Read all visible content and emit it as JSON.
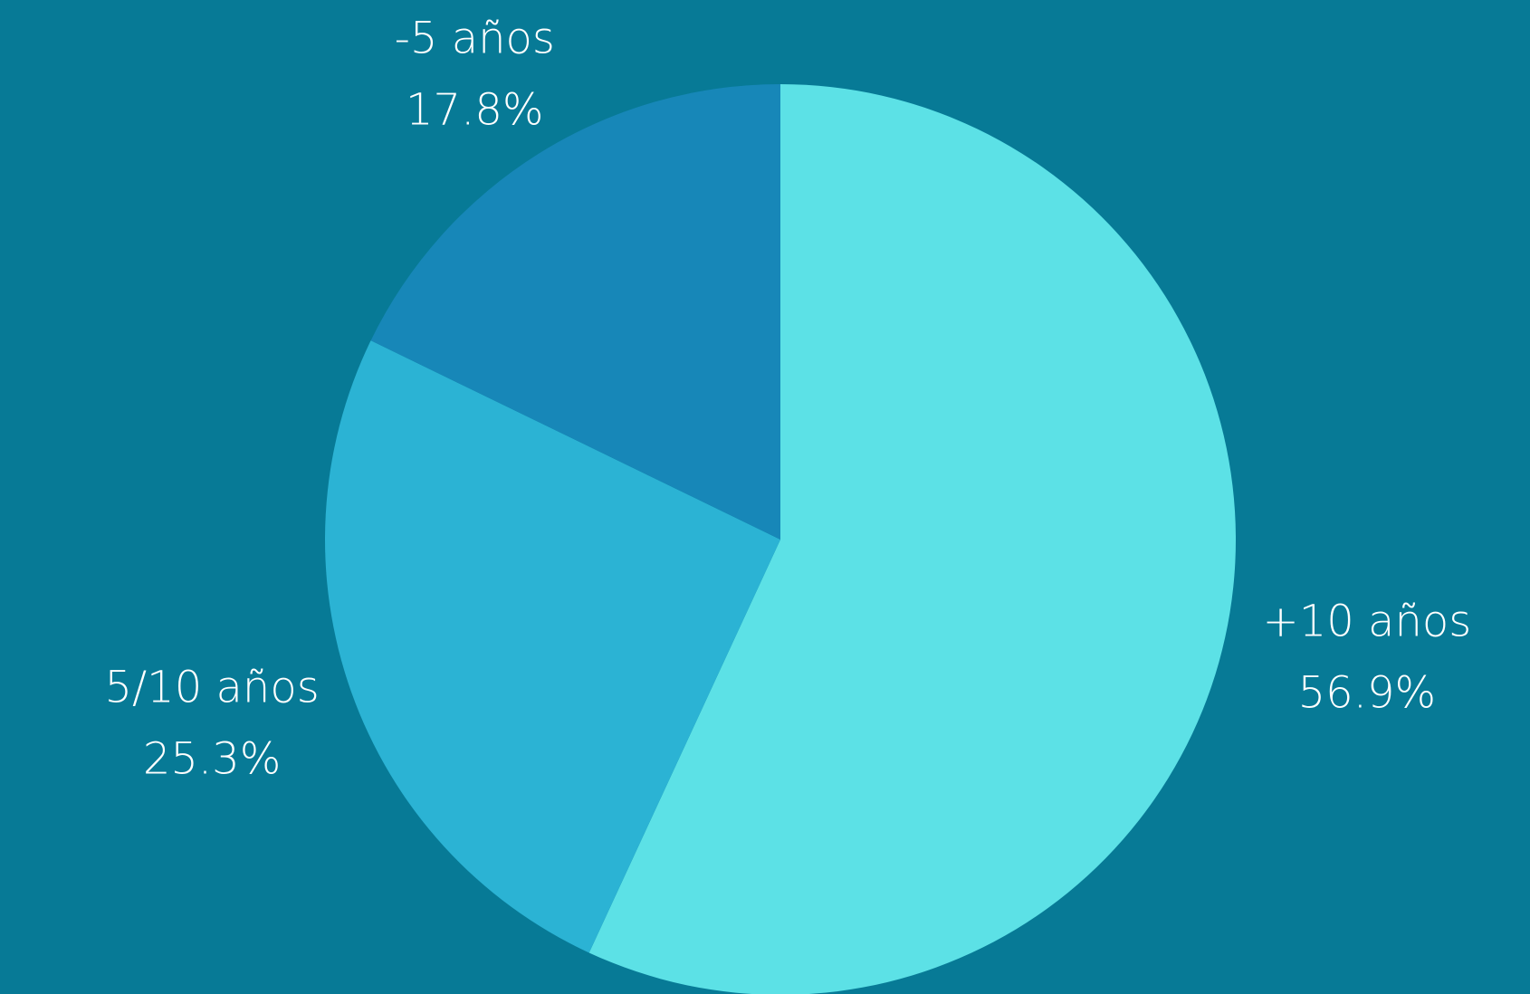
{
  "chart_data": {
    "type": "pie",
    "categories": [
      "+10 años",
      "5/10 años",
      "-5 años"
    ],
    "values": [
      56.9,
      25.3,
      17.8
    ],
    "value_labels": [
      "56.9%",
      "25.3%",
      "17.8%"
    ],
    "colors": [
      "#5ce1e6",
      "#2bb3d4",
      "#1787b8"
    ]
  }
}
